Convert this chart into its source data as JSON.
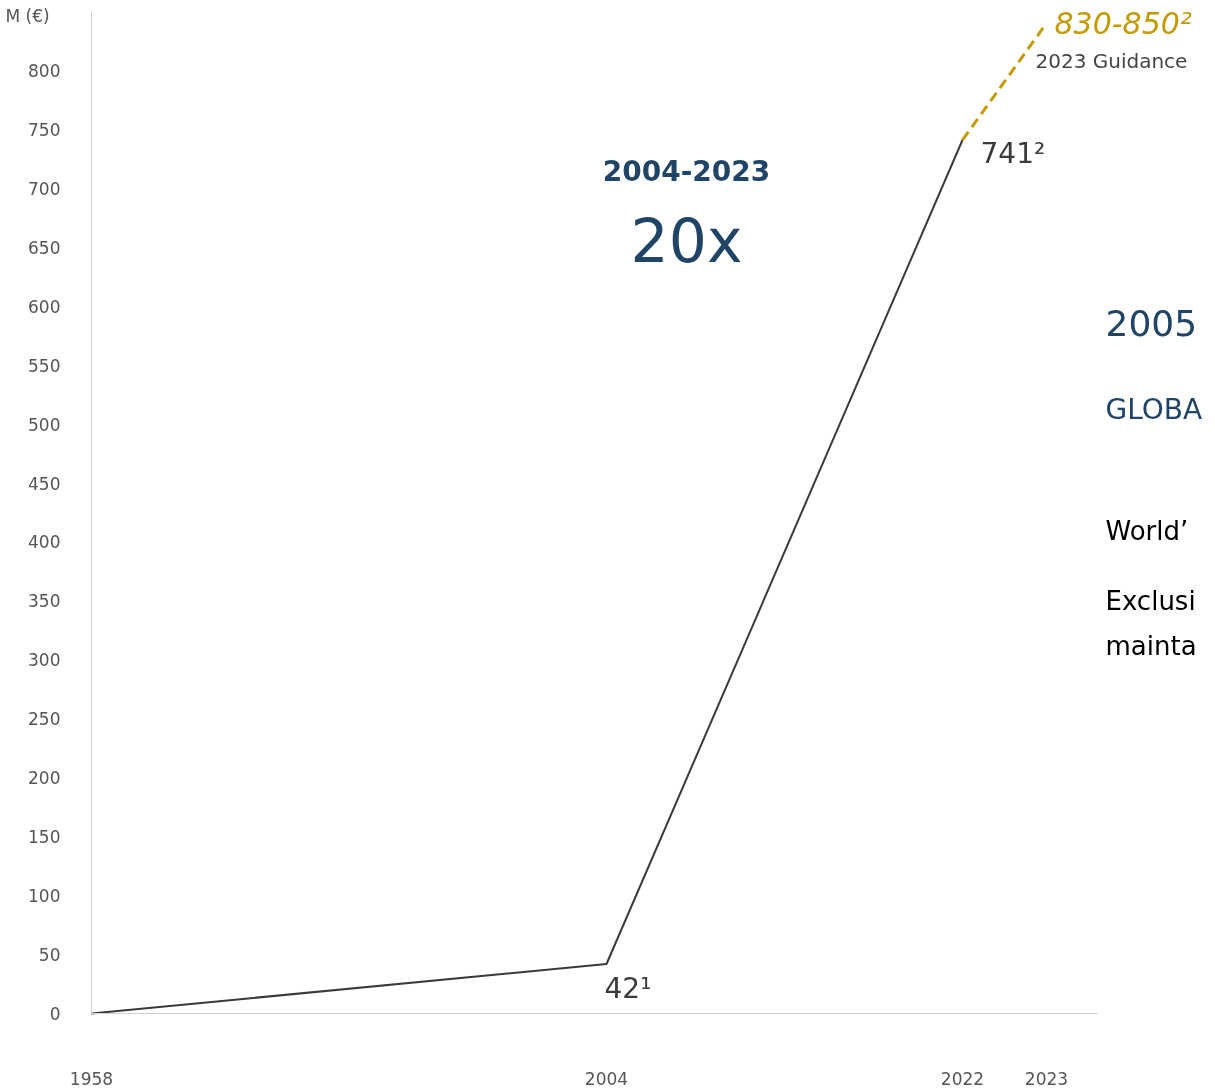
{
  "chart_data": {
    "type": "line",
    "ylabel": "M (€)",
    "categories": [
      "1958",
      "2004",
      "2022",
      "2023"
    ],
    "ylim": [
      0,
      850
    ],
    "yticks": [
      0,
      50,
      100,
      150,
      200,
      250,
      300,
      350,
      400,
      450,
      500,
      550,
      600,
      650,
      700,
      750,
      800
    ],
    "grid": false,
    "marker": "none",
    "series": [
      {
        "color": "#3a3a3a",
        "line_style": "solid",
        "values": [
          0,
          42,
          741,
          null
        ],
        "value_labels": [
          null,
          "42¹",
          "741²",
          null
        ]
      },
      {
        "color": "#c49a00",
        "line_style": "dashed",
        "values": [
          null,
          null,
          741,
          840
        ],
        "value_labels": [
          null,
          null,
          null,
          "830-850²"
        ]
      }
    ],
    "annotations": [
      "2023 Guidance",
      "2004-2023",
      "20x",
      "2005",
      "GLOBA",
      "World’",
      "Exclusi",
      "mainta"
    ]
  }
}
